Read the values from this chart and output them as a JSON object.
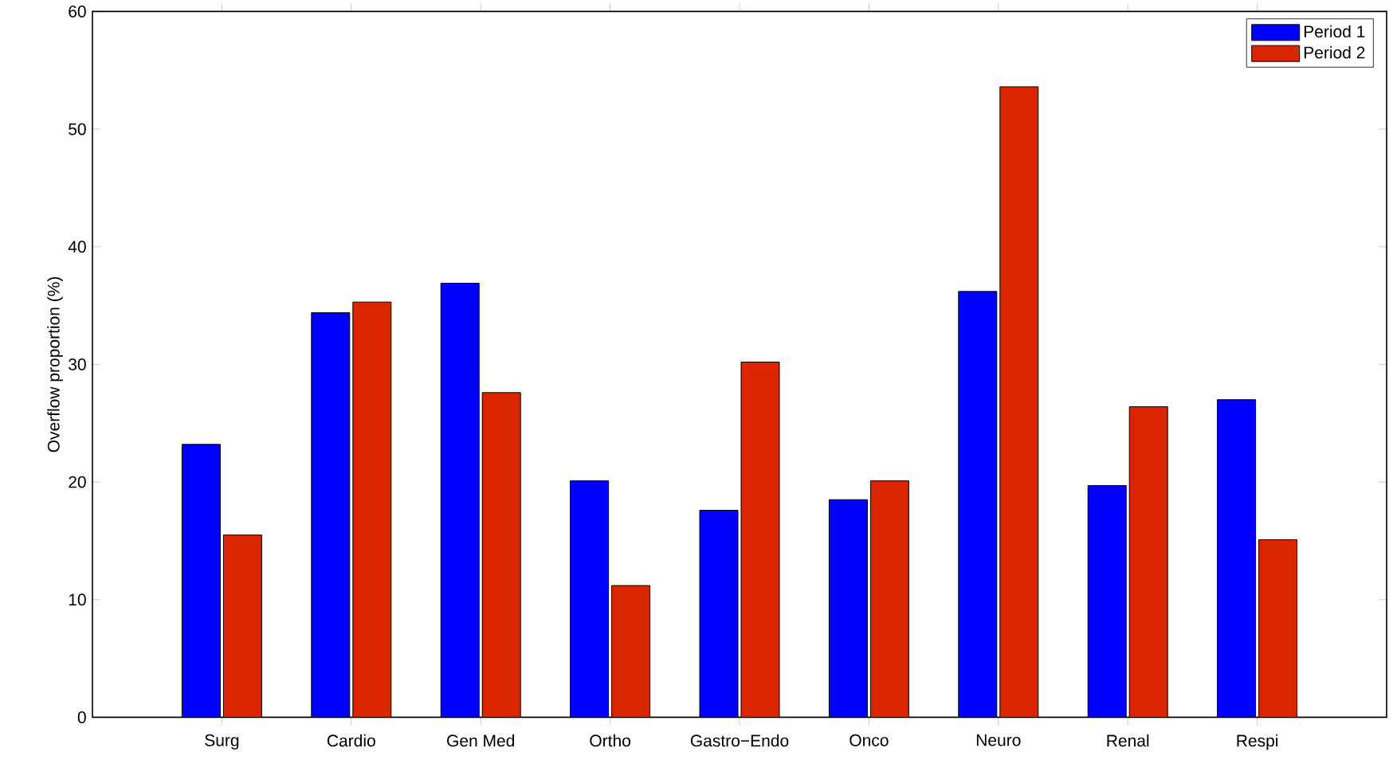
{
  "chart_data": {
    "type": "bar",
    "ylabel": "Overflow proportion (%)",
    "categories": [
      "Surg",
      "Cardio",
      "Gen Med",
      "Ortho",
      "Gastro−Endo",
      "Onco",
      "Neuro",
      "Renal",
      "Respi"
    ],
    "series": [
      {
        "name": "Period 1",
        "color": "#0000ff",
        "values": [
          23.2,
          34.4,
          36.9,
          20.1,
          17.6,
          18.5,
          36.2,
          19.7,
          27.0
        ]
      },
      {
        "name": "Period 2",
        "color": "#d92600",
        "values": [
          15.5,
          35.3,
          27.6,
          11.2,
          30.2,
          20.1,
          53.6,
          26.4,
          15.1
        ]
      }
    ],
    "ylim": [
      0,
      60
    ],
    "yticks": [
      0,
      10,
      20,
      30,
      40,
      50,
      60
    ],
    "grid": false,
    "legend": "top right"
  }
}
